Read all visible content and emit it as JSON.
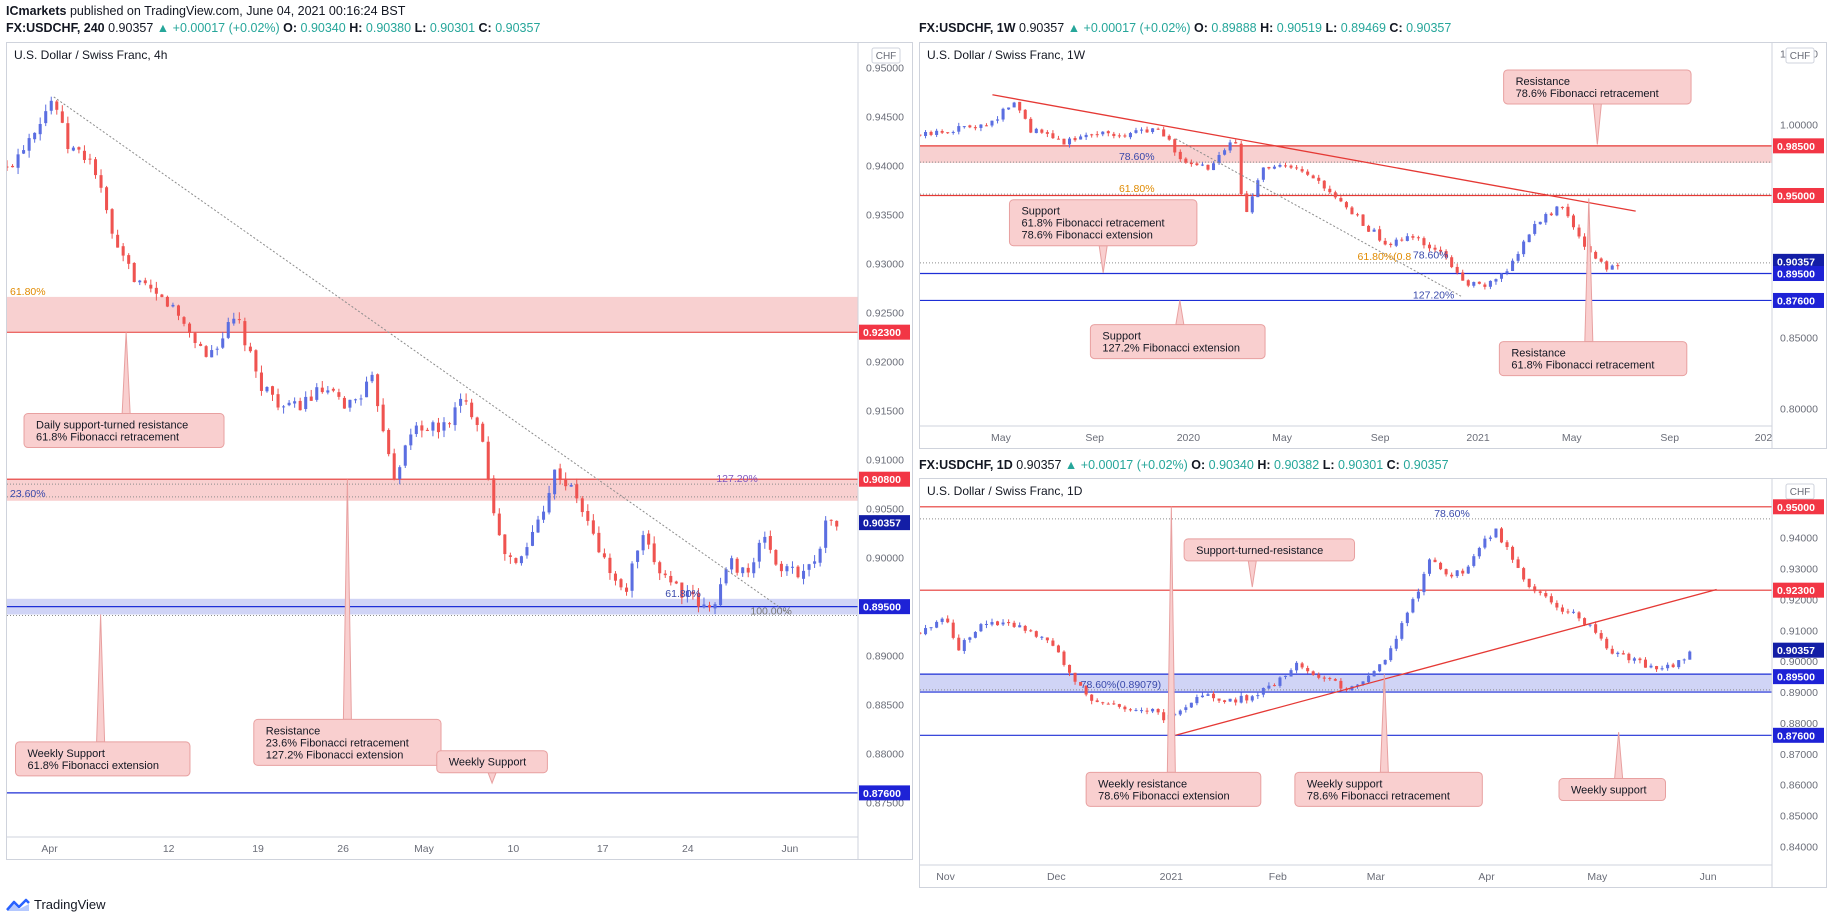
{
  "header": {
    "publisher": "ICmarkets",
    "published_text": "published on TradingView.com, June 04, 2021 00:16:24 BST"
  },
  "footer": {
    "brand": "TradingView"
  },
  "colors": {
    "up": "#5b6ee1",
    "down": "#ef5350",
    "resistance_fill": "#f7c8c8",
    "support_fill": "#c8cdf5",
    "red_line": "#e53935",
    "blue_line": "#1e2fd6",
    "badge_red": "#f23645",
    "badge_blue": "#1e22d6",
    "badge_dark": "#131ea6",
    "callout_fill": "#f9cfcf",
    "callout_border": "#e8a0a0"
  },
  "chart_data": [
    {
      "id": "4h",
      "type": "candlestick",
      "header": {
        "symbol": "FX:USDCHF, 240",
        "last": "0.90357",
        "change": "▲ +0.00017 (+0.02%)",
        "ohlc": [
          {
            "k": "O:",
            "v": "0.90340"
          },
          {
            "k": "H:",
            "v": "0.90380"
          },
          {
            "k": "L:",
            "v": "0.90301"
          },
          {
            "k": "C:",
            "v": "0.90357"
          }
        ]
      },
      "title": "U.S. Dollar / Swiss Franc, 4h",
      "currency": "CHF",
      "ylim": [
        0.8715,
        0.9525
      ],
      "y_ticks": [
        "0.95000",
        "0.94500",
        "0.94000",
        "0.93500",
        "0.93000",
        "0.92500",
        "0.92000",
        "0.91500",
        "0.91000",
        "0.90500",
        "0.90000",
        "0.89500",
        "0.89000",
        "0.88500",
        "0.88000",
        "0.87500"
      ],
      "x_ticks": [
        {
          "label": "Apr",
          "pos": 0.05
        },
        {
          "label": "12",
          "pos": 0.19
        },
        {
          "label": "19",
          "pos": 0.295
        },
        {
          "label": "26",
          "pos": 0.395
        },
        {
          "label": "May",
          "pos": 0.49
        },
        {
          "label": "10",
          "pos": 0.595
        },
        {
          "label": "17",
          "pos": 0.7
        },
        {
          "label": "24",
          "pos": 0.8
        },
        {
          "label": "Jun",
          "pos": 0.92
        }
      ],
      "path": [
        [
          0,
          0.9395
        ],
        [
          0.055,
          0.947
        ],
        [
          0.07,
          0.942
        ],
        [
          0.1,
          0.9405
        ],
        [
          0.13,
          0.931
        ],
        [
          0.165,
          0.927
        ],
        [
          0.19,
          0.926
        ],
        [
          0.235,
          0.9205
        ],
        [
          0.27,
          0.9245
        ],
        [
          0.295,
          0.918
        ],
        [
          0.33,
          0.915
        ],
        [
          0.37,
          0.917
        ],
        [
          0.4,
          0.9155
        ],
        [
          0.43,
          0.918
        ],
        [
          0.455,
          0.9085
        ],
        [
          0.48,
          0.9135
        ],
        [
          0.51,
          0.913
        ],
        [
          0.535,
          0.916
        ],
        [
          0.555,
          0.914
        ],
        [
          0.58,
          0.901
        ],
        [
          0.6,
          0.899
        ],
        [
          0.625,
          0.904
        ],
        [
          0.645,
          0.909
        ],
        [
          0.67,
          0.906
        ],
        [
          0.7,
          0.9
        ],
        [
          0.725,
          0.896
        ],
        [
          0.745,
          0.902
        ],
        [
          0.765,
          0.899
        ],
        [
          0.8,
          0.896
        ],
        [
          0.825,
          0.8945
        ],
        [
          0.85,
          0.8995
        ],
        [
          0.875,
          0.8985
        ],
        [
          0.89,
          0.9025
        ],
        [
          0.905,
          0.899
        ],
        [
          0.925,
          0.8985
        ],
        [
          0.945,
          0.899
        ],
        [
          0.965,
          0.904
        ],
        [
          0.975,
          0.90357
        ]
      ],
      "zones": [
        {
          "kind": "res",
          "from": 0.9231,
          "to": 0.9266
        },
        {
          "kind": "res",
          "from": 0.9058,
          "to": 0.908
        },
        {
          "kind": "sup",
          "from": 0.8942,
          "to": 0.8958
        }
      ],
      "hlines": [
        {
          "y": 0.923,
          "color": "red"
        },
        {
          "y": 0.908,
          "color": "red"
        },
        {
          "y": 0.895,
          "color": "blue"
        },
        {
          "y": 0.876,
          "color": "blue"
        }
      ],
      "dotted_lines": [
        {
          "y": 0.9062
        },
        {
          "y": 0.9075
        },
        {
          "y": 0.8941
        }
      ],
      "fib_labels": [
        {
          "text": "61.80%",
          "x": 0.0,
          "y": 0.9266,
          "color": "#e08a00"
        },
        {
          "text": "23.60%",
          "x": 0.0,
          "y": 0.906,
          "color": "#3949ab"
        },
        {
          "text": "127.20%",
          "x": 0.83,
          "y": 0.9075,
          "color": "#7e57c2"
        },
        {
          "text": "61.80%",
          "x": 0.77,
          "y": 0.8958,
          "color": "#3949ab"
        },
        {
          "text": "100.00%",
          "x": 0.87,
          "y": 0.894,
          "color": "#777777"
        }
      ],
      "badges": [
        {
          "text": "0.92300",
          "y": 0.923,
          "color": "red"
        },
        {
          "text": "0.90800",
          "y": 0.908,
          "color": "red"
        },
        {
          "text": "0.90357",
          "y": 0.90357,
          "color": "dark"
        },
        {
          "text": "0.89500",
          "y": 0.895,
          "color": "blue"
        },
        {
          "text": "0.87600",
          "y": 0.876,
          "color": "blue"
        }
      ],
      "diag_line": {
        "from": [
          0.055,
          0.947
        ],
        "to": [
          0.92,
          0.8942
        ]
      },
      "callouts": [
        {
          "lines": [
            "Daily support-turned resistance",
            "61.8% Fibonacci retracement"
          ],
          "x": 0.02,
          "y": 0.9147,
          "w": 0.235,
          "ptr": [
            0.14,
            0.923
          ],
          "ptrDir": "up"
        },
        {
          "lines": [
            "Resistance",
            "23.6% Fibonacci retracement",
            "127.2% Fibonacci extension"
          ],
          "x": 0.29,
          "y": 0.8835,
          "w": 0.22,
          "ptr": [
            0.4,
            0.908
          ],
          "ptrDir": "up"
        },
        {
          "lines": [
            "Weekly Support",
            "61.8% Fibonacci extension"
          ],
          "x": 0.01,
          "y": 0.8812,
          "w": 0.205,
          "ptr": [
            0.11,
            0.8942
          ],
          "ptrDir": "up"
        },
        {
          "lines": [
            "Weekly Support"
          ],
          "x": 0.505,
          "y": 0.8803,
          "w": 0.13,
          "ptr": [
            0.57,
            0.877
          ],
          "ptrDir": "down"
        }
      ]
    },
    {
      "id": "1w",
      "type": "candlestick",
      "header": {
        "symbol": "FX:USDCHF, 1W",
        "last": "0.90357",
        "change": "▲ +0.00017 (+0.02%)",
        "ohlc": [
          {
            "k": "O:",
            "v": "0.89888"
          },
          {
            "k": "H:",
            "v": "0.90519"
          },
          {
            "k": "L:",
            "v": "0.89469"
          },
          {
            "k": "C:",
            "v": "0.90357"
          }
        ]
      },
      "title": "U.S. Dollar / Swiss Franc, 1W",
      "currency": "CHF",
      "ylim": [
        0.7875,
        1.0575
      ],
      "y_ticks": [
        "1.05000",
        "1.00000",
        "0.95000",
        "0.90000",
        "0.85000",
        "0.80000"
      ],
      "x_ticks": [
        {
          "label": "May",
          "pos": 0.095
        },
        {
          "label": "Sep",
          "pos": 0.205
        },
        {
          "label": "2020",
          "pos": 0.315
        },
        {
          "label": "May",
          "pos": 0.425
        },
        {
          "label": "Sep",
          "pos": 0.54
        },
        {
          "label": "2021",
          "pos": 0.655
        },
        {
          "label": "May",
          "pos": 0.765
        },
        {
          "label": "Sep",
          "pos": 0.88
        },
        {
          "label": "202",
          "pos": 0.99
        }
      ],
      "path": [
        [
          0,
          0.992
        ],
        [
          0.05,
          0.998
        ],
        [
          0.085,
          1.002
        ],
        [
          0.11,
          1.016
        ],
        [
          0.13,
          0.996
        ],
        [
          0.17,
          0.988
        ],
        [
          0.21,
          0.995
        ],
        [
          0.24,
          0.992
        ],
        [
          0.28,
          0.999
        ],
        [
          0.31,
          0.972
        ],
        [
          0.34,
          0.969
        ],
        [
          0.37,
          0.99
        ],
        [
          0.38,
          0.935
        ],
        [
          0.4,
          0.968
        ],
        [
          0.43,
          0.97
        ],
        [
          0.46,
          0.962
        ],
        [
          0.49,
          0.947
        ],
        [
          0.52,
          0.93
        ],
        [
          0.55,
          0.915
        ],
        [
          0.58,
          0.921
        ],
        [
          0.61,
          0.91
        ],
        [
          0.64,
          0.889
        ],
        [
          0.66,
          0.885
        ],
        [
          0.69,
          0.896
        ],
        [
          0.71,
          0.92
        ],
        [
          0.73,
          0.933
        ],
        [
          0.75,
          0.943
        ],
        [
          0.77,
          0.925
        ],
        [
          0.79,
          0.905
        ],
        [
          0.81,
          0.898
        ],
        [
          0.825,
          0.90357
        ]
      ],
      "zones": [
        {
          "kind": "res",
          "from": 0.973,
          "to": 0.985
        }
      ],
      "hlines": [
        {
          "y": 0.985,
          "color": "red"
        },
        {
          "y": 0.95,
          "color": "red"
        },
        {
          "y": 0.895,
          "color": "blue"
        },
        {
          "y": 0.876,
          "color": "blue"
        }
      ],
      "dotted_lines": [
        {
          "y": 0.9735
        },
        {
          "y": 0.951
        },
        {
          "y": 0.9025
        }
      ],
      "fib_labels": [
        {
          "text": "78.60%",
          "x": 0.23,
          "y": 0.9737,
          "color": "#3949ab"
        },
        {
          "text": "61.80%",
          "x": 0.23,
          "y": 0.9512,
          "color": "#e08a00"
        },
        {
          "text": "61.80%(0.8",
          "x": 0.51,
          "y": 0.903,
          "color": "#e08a00"
        },
        {
          "text": "78.60%",
          "x": 0.575,
          "y": 0.904,
          "color": "#3949ab"
        },
        {
          "text": "127.20%",
          "x": 0.575,
          "y": 0.876,
          "color": "#3949ab"
        }
      ],
      "badges": [
        {
          "text": "0.98500",
          "y": 0.985,
          "color": "red"
        },
        {
          "text": "0.95000",
          "y": 0.95,
          "color": "red"
        },
        {
          "text": "0.90357",
          "y": 0.90357,
          "color": "dark"
        },
        {
          "text": "0.89500",
          "y": 0.895,
          "color": "blue"
        },
        {
          "text": "0.87600",
          "y": 0.876,
          "color": "blue"
        }
      ],
      "diag_line": {
        "from": [
          0.085,
          1.021
        ],
        "to": [
          0.84,
          0.939
        ]
      },
      "diag_dotted": {
        "from": [
          0.3,
          0.99
        ],
        "to": [
          0.635,
          0.879
        ]
      },
      "callouts": [
        {
          "lines": [
            "Resistance",
            "78.6% Fibonacci retracement"
          ],
          "x": 0.685,
          "y": 1.0385,
          "w": 0.22,
          "ptr": [
            0.795,
            0.986
          ],
          "ptrDir": "down"
        },
        {
          "lines": [
            "Support",
            "61.8% Fibonacci retracement",
            "78.6% Fibonacci extension"
          ],
          "x": 0.105,
          "y": 0.947,
          "w": 0.22,
          "ptr": [
            0.215,
            0.8955
          ],
          "ptrDir": "down"
        },
        {
          "lines": [
            "Support",
            "127.2% Fibonacci extension"
          ],
          "x": 0.2,
          "y": 0.859,
          "w": 0.205,
          "ptr": [
            0.305,
            0.876
          ],
          "ptrDir": "up"
        },
        {
          "lines": [
            "Resistance",
            "61.8% Fibonacci retracement"
          ],
          "x": 0.68,
          "y": 0.847,
          "w": 0.22,
          "ptr": [
            0.785,
            0.948
          ],
          "ptrDir": "up"
        }
      ]
    },
    {
      "id": "1d",
      "type": "candlestick",
      "header": {
        "symbol": "FX:USDCHF, 1D",
        "last": "0.90357",
        "change": "▲ +0.00017 (+0.02%)",
        "ohlc": [
          {
            "k": "O:",
            "v": "0.90340"
          },
          {
            "k": "H:",
            "v": "0.90382"
          },
          {
            "k": "L:",
            "v": "0.90301"
          },
          {
            "k": "C:",
            "v": "0.90357"
          }
        ]
      },
      "title": "U.S. Dollar / Swiss Franc, 1D",
      "currency": "CHF",
      "ylim": [
        0.834,
        0.959
      ],
      "y_ticks": [
        "0.95000",
        "0.94000",
        "0.93000",
        "0.92000",
        "0.91000",
        "0.90000",
        "0.89000",
        "0.88000",
        "0.87000",
        "0.86000",
        "0.85000",
        "0.84000"
      ],
      "x_ticks": [
        {
          "label": "Nov",
          "pos": 0.03
        },
        {
          "label": "Dec",
          "pos": 0.16
        },
        {
          "label": "2021",
          "pos": 0.295
        },
        {
          "label": "Feb",
          "pos": 0.42
        },
        {
          "label": "Mar",
          "pos": 0.535
        },
        {
          "label": "Apr",
          "pos": 0.665
        },
        {
          "label": "May",
          "pos": 0.795
        },
        {
          "label": "Jun",
          "pos": 0.925
        }
      ],
      "path": [
        [
          0,
          0.909
        ],
        [
          0.03,
          0.915
        ],
        [
          0.045,
          0.904
        ],
        [
          0.07,
          0.912
        ],
        [
          0.1,
          0.913
        ],
        [
          0.13,
          0.91
        ],
        [
          0.16,
          0.905
        ],
        [
          0.18,
          0.893
        ],
        [
          0.21,
          0.886
        ],
        [
          0.24,
          0.885
        ],
        [
          0.27,
          0.884
        ],
        [
          0.29,
          0.881
        ],
        [
          0.31,
          0.886
        ],
        [
          0.34,
          0.889
        ],
        [
          0.37,
          0.887
        ],
        [
          0.4,
          0.89
        ],
        [
          0.42,
          0.893
        ],
        [
          0.44,
          0.899
        ],
        [
          0.47,
          0.895
        ],
        [
          0.5,
          0.891
        ],
        [
          0.52,
          0.894
        ],
        [
          0.55,
          0.902
        ],
        [
          0.58,
          0.92
        ],
        [
          0.6,
          0.934
        ],
        [
          0.62,
          0.928
        ],
        [
          0.64,
          0.929
        ],
        [
          0.655,
          0.936
        ],
        [
          0.675,
          0.943
        ],
        [
          0.69,
          0.936
        ],
        [
          0.71,
          0.926
        ],
        [
          0.74,
          0.919
        ],
        [
          0.77,
          0.915
        ],
        [
          0.79,
          0.91
        ],
        [
          0.81,
          0.903
        ],
        [
          0.83,
          0.901
        ],
        [
          0.86,
          0.898
        ],
        [
          0.885,
          0.898
        ],
        [
          0.905,
          0.90357
        ]
      ],
      "zones": [
        {
          "kind": "sup",
          "from": 0.89,
          "to": 0.8958
        }
      ],
      "hlines": [
        {
          "y": 0.95,
          "color": "red"
        },
        {
          "y": 0.923,
          "color": "red"
        },
        {
          "y": 0.8958,
          "color": "blue"
        },
        {
          "y": 0.89,
          "color": "blue"
        },
        {
          "y": 0.876,
          "color": "blue"
        }
      ],
      "dotted_lines": [
        {
          "y": 0.9461
        },
        {
          "y": 0.8907
        }
      ],
      "fib_labels": [
        {
          "text": "78.60%",
          "x": 0.6,
          "y": 0.9461,
          "color": "#3949ab"
        },
        {
          "text": "78.60%(0.89079)",
          "x": 0.185,
          "y": 0.8907,
          "color": "#3949ab"
        }
      ],
      "badges": [
        {
          "text": "0.95000",
          "y": 0.95,
          "color": "red"
        },
        {
          "text": "0.92300",
          "y": 0.923,
          "color": "red"
        },
        {
          "text": "0.90357",
          "y": 0.90357,
          "color": "dark"
        },
        {
          "text": "0.89500",
          "y": 0.895,
          "color": "blue"
        },
        {
          "text": "0.87600",
          "y": 0.876,
          "color": "blue"
        }
      ],
      "diag_line": {
        "from": [
          0.3,
          0.876
        ],
        "to": [
          0.935,
          0.9232
        ]
      },
      "callouts": [
        {
          "lines": [
            "Support-turned-resistance"
          ],
          "x": 0.31,
          "y": 0.9396,
          "w": 0.2,
          "ptr": [
            0.39,
            0.924
          ],
          "ptrDir": "down"
        },
        {
          "lines": [
            "Weekly resistance",
            "78.6% Fibonacci extension"
          ],
          "x": 0.195,
          "y": 0.864,
          "w": 0.205,
          "ptr": [
            0.295,
            0.95
          ],
          "ptrDir": "up"
        },
        {
          "lines": [
            "Weekly support",
            "78.6% Fibonacci retracement"
          ],
          "x": 0.44,
          "y": 0.864,
          "w": 0.22,
          "ptr": [
            0.545,
            0.8958
          ],
          "ptrDir": "up"
        },
        {
          "lines": [
            "Weekly support"
          ],
          "x": 0.75,
          "y": 0.862,
          "w": 0.125,
          "ptr": [
            0.82,
            0.877
          ],
          "ptrDir": "up"
        }
      ]
    }
  ]
}
